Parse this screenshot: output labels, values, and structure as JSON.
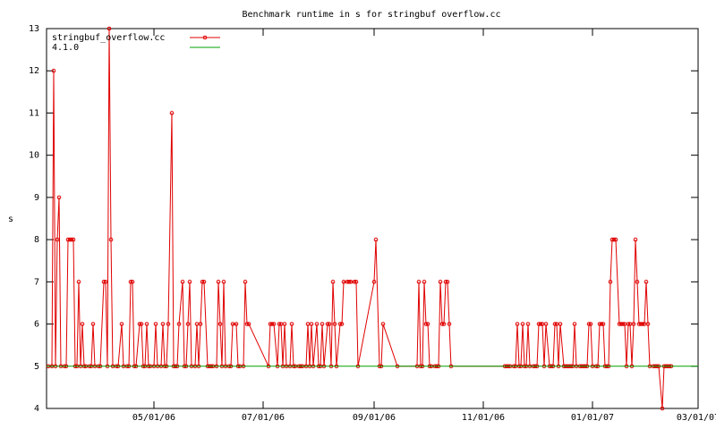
{
  "chart_data": {
    "type": "line",
    "title": "Benchmark runtime in s for stringbuf overflow.cc",
    "y_label": "s",
    "xlim": [
      "03/02/06",
      "03/01/07"
    ],
    "xticks": [
      "05/01/06",
      "07/01/06",
      "09/01/06",
      "11/01/06",
      "01/01/07",
      "03/01/07"
    ],
    "ylim": [
      4,
      13
    ],
    "yticks": [
      4,
      5,
      6,
      7,
      8,
      9,
      10,
      11,
      12,
      13
    ],
    "grid": false,
    "legend": "top-left",
    "series": [
      {
        "name": "stringbuf_overflow.cc",
        "color": "#e00000",
        "markers": true,
        "x": [
          "03/03/06",
          "03/05/06",
          "03/06/06",
          "03/07/06",
          "03/08/06",
          "03/09/06",
          "03/10/06",
          "03/12/06",
          "03/13/06",
          "03/14/06",
          "03/15/06",
          "03/16/06",
          "03/17/06",
          "03/18/06",
          "03/19/06",
          "03/20/06",
          "03/21/06",
          "03/22/06",
          "03/23/06",
          "03/24/06",
          "03/26/06",
          "03/27/06",
          "03/28/06",
          "03/29/06",
          "03/31/06",
          "04/01/06",
          "04/03/06",
          "04/04/06",
          "04/05/06",
          "04/06/06",
          "04/07/06",
          "04/08/06",
          "04/10/06",
          "04/11/06",
          "04/13/06",
          "04/14/06",
          "04/16/06",
          "04/17/06",
          "04/18/06",
          "04/19/06",
          "04/20/06",
          "04/21/06",
          "04/23/06",
          "04/24/06",
          "04/25/06",
          "04/26/06",
          "04/27/06",
          "04/28/06",
          "04/29/06",
          "05/01/06",
          "05/02/06",
          "05/03/06",
          "05/05/06",
          "05/06/06",
          "05/07/06",
          "05/08/06",
          "05/09/06",
          "05/11/06",
          "05/12/06",
          "05/13/06",
          "05/14/06",
          "05/15/06",
          "05/17/06",
          "05/18/06",
          "05/19/06",
          "05/20/06",
          "05/21/06",
          "05/22/06",
          "05/24/06",
          "05/25/06",
          "05/26/06",
          "05/27/06",
          "05/28/06",
          "05/29/06",
          "05/31/06",
          "06/01/06",
          "06/02/06",
          "06/03/06",
          "06/05/06",
          "06/06/06",
          "06/07/06",
          "06/08/06",
          "06/09/06",
          "06/10/06",
          "06/12/06",
          "06/13/06",
          "06/14/06",
          "06/16/06",
          "06/17/06",
          "06/18/06",
          "06/20/06",
          "06/21/06",
          "06/22/06",
          "06/23/06",
          "07/04/06",
          "07/05/06",
          "07/06/06",
          "07/07/06",
          "07/09/06",
          "07/10/06",
          "07/11/06",
          "07/12/06",
          "07/13/06",
          "07/14/06",
          "07/16/06",
          "07/17/06",
          "07/18/06",
          "07/19/06",
          "07/21/06",
          "07/22/06",
          "07/23/06",
          "07/25/06",
          "07/26/06",
          "07/27/06",
          "07/28/06",
          "07/29/06",
          "07/31/06",
          "08/01/06",
          "08/02/06",
          "08/03/06",
          "08/04/06",
          "08/06/06",
          "08/07/06",
          "08/08/06",
          "08/09/06",
          "08/10/06",
          "08/11/06",
          "08/13/06",
          "08/14/06",
          "08/15/06",
          "08/17/06",
          "08/18/06",
          "08/19/06",
          "08/21/06",
          "08/22/06",
          "08/23/06",
          "09/01/06",
          "09/02/06",
          "09/04/06",
          "09/05/06",
          "09/06/06",
          "09/14/06",
          "09/25/06",
          "09/26/06",
          "09/27/06",
          "09/28/06",
          "09/29/06",
          "09/30/06",
          "10/01/06",
          "10/02/06",
          "10/03/06",
          "10/05/06",
          "10/06/06",
          "10/07/06",
          "10/08/06",
          "10/09/06",
          "10/10/06",
          "10/11/06",
          "10/12/06",
          "10/13/06",
          "10/14/06",
          "11/13/06",
          "11/14/06",
          "11/15/06",
          "11/16/06",
          "11/18/06",
          "11/19/06",
          "11/20/06",
          "11/21/06",
          "11/22/06",
          "11/23/06",
          "11/24/06",
          "11/25/06",
          "11/26/06",
          "11/27/06",
          "11/29/06",
          "11/30/06",
          "12/01/06",
          "12/02/06",
          "12/03/06",
          "12/04/06",
          "12/05/06",
          "12/06/06",
          "12/08/06",
          "12/09/06",
          "12/10/06",
          "12/11/06",
          "12/12/06",
          "12/13/06",
          "12/14/06",
          "12/16/06",
          "12/17/06",
          "12/18/06",
          "12/19/06",
          "12/20/06",
          "12/21/06",
          "12/22/06",
          "12/23/06",
          "12/25/06",
          "12/26/06",
          "12/27/06",
          "12/28/06",
          "12/29/06",
          "12/30/06",
          "12/31/06",
          "01/01/07",
          "01/03/07",
          "01/04/07",
          "01/05/07",
          "01/06/07",
          "01/07/07",
          "01/08/07",
          "01/09/07",
          "01/10/07",
          "01/11/07",
          "01/12/07",
          "01/13/07",
          "01/14/07",
          "01/16/07",
          "01/17/07",
          "01/18/07",
          "01/19/07",
          "01/20/07",
          "01/21/07",
          "01/22/07",
          "01/23/07",
          "01/24/07",
          "01/25/07",
          "01/26/07",
          "01/27/07",
          "01/28/07",
          "01/29/07",
          "01/30/07",
          "01/31/07",
          "02/01/07",
          "02/02/07",
          "02/04/07",
          "02/05/07",
          "02/06/07",
          "02/07/07",
          "02/09/07",
          "02/10/07",
          "02/11/07",
          "02/12/07",
          "02/13/07",
          "02/14/07"
        ],
        "values": [
          5,
          5,
          12,
          5,
          8,
          9,
          5,
          5,
          5,
          8,
          8,
          8,
          8,
          5,
          5,
          7,
          5,
          6,
          5,
          5,
          5,
          5,
          6,
          5,
          5,
          5,
          7,
          7,
          5,
          13,
          8,
          5,
          5,
          5,
          6,
          5,
          5,
          5,
          7,
          7,
          5,
          5,
          6,
          6,
          5,
          5,
          6,
          5,
          5,
          5,
          6,
          5,
          5,
          6,
          5,
          5,
          6,
          11,
          5,
          5,
          5,
          6,
          7,
          5,
          5,
          6,
          7,
          5,
          5,
          6,
          5,
          6,
          7,
          7,
          5,
          5,
          5,
          5,
          5,
          7,
          6,
          5,
          7,
          5,
          5,
          5,
          6,
          6,
          5,
          5,
          5,
          7,
          6,
          6,
          5,
          6,
          6,
          6,
          5,
          6,
          6,
          5,
          6,
          5,
          5,
          6,
          5,
          5,
          5,
          5,
          5,
          5,
          6,
          5,
          6,
          5,
          6,
          5,
          5,
          6,
          5,
          6,
          6,
          5,
          7,
          6,
          5,
          6,
          6,
          7,
          7,
          7,
          7,
          7,
          7,
          5,
          7,
          8,
          5,
          5,
          6,
          5,
          5,
          7,
          5,
          5,
          7,
          6,
          6,
          5,
          5,
          5,
          5,
          5,
          7,
          6,
          6,
          7,
          7,
          6,
          5,
          5,
          5,
          5,
          5,
          5,
          5,
          6,
          5,
          5,
          6,
          5,
          5,
          6,
          5,
          5,
          5,
          5,
          6,
          6,
          6,
          5,
          6,
          5,
          5,
          5,
          6,
          6,
          5,
          6,
          5,
          5,
          5,
          5,
          5,
          5,
          6,
          5,
          5,
          5,
          5,
          5,
          5,
          6,
          6,
          5,
          5,
          5,
          6,
          6,
          6,
          5,
          5,
          5,
          7,
          8,
          8,
          8,
          6,
          6,
          6,
          6,
          5,
          6,
          6,
          5,
          6,
          8,
          7,
          6,
          6,
          6,
          6,
          7,
          6,
          5,
          5,
          5,
          5,
          5,
          4,
          5,
          5,
          5,
          5,
          5
        ]
      },
      {
        "name": "4.1.0",
        "color": "#00a000",
        "markers": false,
        "x": [
          "03/02/06",
          "03/01/07"
        ],
        "values": [
          5,
          5
        ]
      }
    ]
  }
}
